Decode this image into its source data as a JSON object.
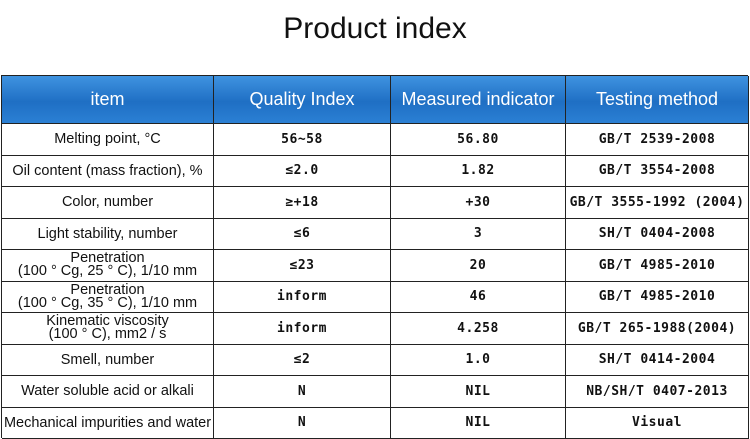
{
  "title": "Product index",
  "table": {
    "header": [
      "item",
      "Quality Index",
      "Measured indicator",
      "Testing method"
    ],
    "rows": [
      [
        "Melting point, °C",
        "56~58",
        "56.80",
        "GB/T 2539-2008"
      ],
      [
        "Oil content (mass fraction), %",
        "≤2.0",
        "1.82",
        "GB/T 3554-2008"
      ],
      [
        "Color, number",
        "≥+18",
        "+30",
        "GB/T 3555-1992 (2004)"
      ],
      [
        "Light stability, number",
        "≤6",
        "3",
        "SH/T 0404-2008"
      ],
      [
        [
          "Penetration",
          "(100 ° Cg, 25 ° C), 1/10 mm"
        ],
        "≤23",
        "20",
        "GB/T 4985-2010"
      ],
      [
        [
          "Penetration",
          "(100 ° Cg, 35 ° C), 1/10 mm"
        ],
        "inform",
        "46",
        "GB/T 4985-2010"
      ],
      [
        [
          "Kinematic viscosity",
          "(100 ° C), mm2 / s"
        ],
        "inform",
        "4.258",
        "GB/T 265-1988(2004)"
      ],
      [
        "Smell, number",
        "≤2",
        "1.0",
        "SH/T 0414-2004"
      ],
      [
        "Water soluble acid or alkali",
        "N",
        "NIL",
        "NB/SH/T 0407-2013"
      ],
      [
        "Mechanical impurities and water",
        "N",
        "NIL",
        "Visual"
      ]
    ]
  }
}
